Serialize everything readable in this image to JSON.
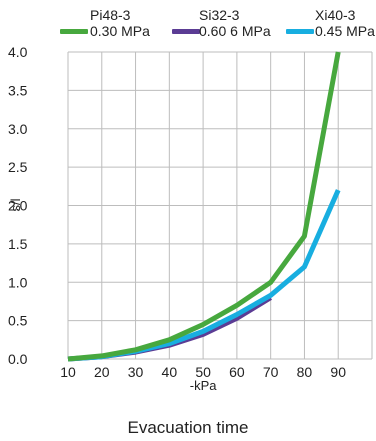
{
  "chart_data": {
    "type": "line",
    "title": "",
    "caption": "Evacuation time",
    "xlabel": "-kPa",
    "ylabel": "s/l",
    "xlim": [
      10,
      100
    ],
    "ylim": [
      0,
      4.0
    ],
    "x_ticks": [
      "10",
      "20",
      "30",
      "40",
      "50",
      "60",
      "70",
      "80",
      "90"
    ],
    "y_ticks": [
      "0.0",
      "0.5",
      "1.0",
      "1.5",
      "2.0",
      "2.5",
      "3.0",
      "3.5",
      "4.0"
    ],
    "grid": true,
    "legend_placement": "top",
    "series": [
      {
        "name": "Pi48-3",
        "sub": "0.30 MPa",
        "color": "#47a83e",
        "points": [
          [
            10,
            0.0
          ],
          [
            20,
            0.04
          ],
          [
            30,
            0.12
          ],
          [
            40,
            0.25
          ],
          [
            50,
            0.45
          ],
          [
            60,
            0.7
          ],
          [
            70,
            1.0
          ],
          [
            80,
            1.6
          ],
          [
            90,
            4.0
          ]
        ]
      },
      {
        "name": "Si32-3",
        "sub": "0.60 6 MPa",
        "color": "#5b3c94",
        "points": [
          [
            10,
            0.0
          ],
          [
            20,
            0.03
          ],
          [
            30,
            0.09
          ],
          [
            40,
            0.18
          ],
          [
            50,
            0.32
          ],
          [
            60,
            0.53
          ],
          [
            70,
            0.8
          ]
        ]
      },
      {
        "name": "Xi40-3",
        "sub": "0.45 MPa",
        "color": "#18aee0",
        "points": [
          [
            10,
            0.0
          ],
          [
            20,
            0.03
          ],
          [
            30,
            0.1
          ],
          [
            40,
            0.2
          ],
          [
            50,
            0.36
          ],
          [
            60,
            0.58
          ],
          [
            70,
            0.83
          ],
          [
            80,
            1.2
          ],
          [
            90,
            2.2
          ]
        ]
      }
    ]
  }
}
